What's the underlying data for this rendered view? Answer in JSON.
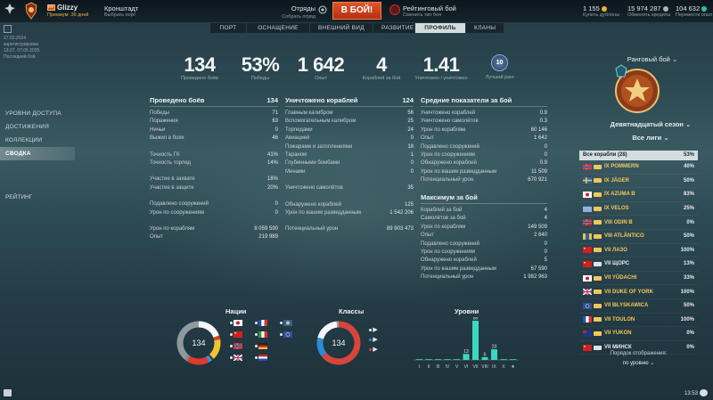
{
  "header": {
    "player_name": "Glizzy",
    "player_flag": "RF",
    "premium": "Премиум: 39 дней",
    "port_name": "Кронштадт",
    "port_sub": "Выбрать порт",
    "divisions_title": "Отряды",
    "divisions_sub": "Собрать отряд",
    "battle_button": "В БОЙ!",
    "mode_name": "Рейтинговый бой",
    "mode_sub": "Сменить тип боя",
    "doubloons": "1 155",
    "doubloons_sub": "Купить дублоны",
    "credits": "15 974 287",
    "credits_sub": "Обменять кредиты",
    "free_xp": "104 632",
    "free_xp_sub": "Перевести опыт",
    "colors": {
      "doubloon": "#f0b429",
      "credit": "#a8b4b8",
      "freexp": "#2fbf9a",
      "battle": "#d8441c"
    }
  },
  "tabs": [
    "ПОРТ",
    "ОСНАЩЕНИЕ",
    "ВНЕШНИЙ ВИД",
    "РАЗВИТИЕ",
    "ПРОФИЛЬ",
    "КЛАНЫ"
  ],
  "dates": {
    "line1": "17.02.2024",
    "line2": "зарегистрирован",
    "line3": "13:27, 07.05.2025",
    "line4": "Последний бой"
  },
  "nav": {
    "items": [
      "УРОВНИ ДОСТУПА",
      "ДОСТИЖЕНИЯ",
      "КОЛЛЕКЦИИ",
      "СВОДКА"
    ],
    "rating": "РЕЙТИНГ"
  },
  "summary": [
    {
      "value": "134",
      "label": "Проведено боёв"
    },
    {
      "value": "53%",
      "label": "Победы"
    },
    {
      "value": "1 642",
      "label": "Опыт"
    },
    {
      "value": "4",
      "label": "Кораблей за бой"
    },
    {
      "value": "1.41",
      "label": "Уничтожен / уничтожен"
    }
  ],
  "best_rank": {
    "value": "10",
    "label": "Лучший ранг"
  },
  "battles": {
    "title": "Проведено боёв",
    "total": "134",
    "group1": [
      [
        "Победы",
        "71"
      ],
      [
        "Поражения",
        "63"
      ],
      [
        "Ничьи",
        "0"
      ],
      [
        "Выжил в боях",
        "46"
      ]
    ],
    "group2": [
      [
        "Точность ГК",
        "41%"
      ],
      [
        "Точность торпед",
        "14%"
      ]
    ],
    "group3": [
      [
        "Участие в захвате",
        "18%"
      ],
      [
        "Участие в защите",
        "20%"
      ]
    ],
    "group4": [
      [
        "Подавлено сооружений",
        "0"
      ],
      [
        "Урон по сооружениям",
        "0"
      ]
    ],
    "group5": [
      [
        "Урон по кораблям",
        "8 059 590"
      ],
      [
        "Опыт",
        "219 989"
      ]
    ]
  },
  "kills": {
    "title": "Уничтожено кораблей",
    "total": "124",
    "group1": [
      [
        "Главным калибром",
        "56"
      ],
      [
        "Вспомогательным калибром",
        "25"
      ],
      [
        "Торпедами",
        "24"
      ],
      [
        "Авиацией",
        "0"
      ],
      [
        "Пожарами и затоплениями",
        "18"
      ],
      [
        "Тараном",
        "1"
      ],
      [
        "Глубинными бомбами",
        "0"
      ],
      [
        "Минами",
        "0"
      ]
    ],
    "group2": [
      [
        "Уничтожено самолётов",
        "35"
      ]
    ],
    "group3": [
      [
        "Обнаружено кораблей",
        "125"
      ],
      [
        "Урон по вашим разведданным",
        "1 542 206"
      ]
    ],
    "group4": [
      [
        "Потенциальный урон",
        "89 903 473"
      ]
    ]
  },
  "averages": {
    "title": "Средние показатели за бой",
    "rows": [
      [
        "Уничтожено кораблей",
        "0.9"
      ],
      [
        "Уничтожено самолётов",
        "0.3"
      ],
      [
        "Урон по кораблям",
        "60 146"
      ],
      [
        "Опыт",
        "1 642"
      ],
      [
        "Подавлено сооружений",
        "0"
      ],
      [
        "Урон по сооружениям",
        "0"
      ],
      [
        "Обнаружено кораблей",
        "0.9"
      ],
      [
        "Урон по вашим разведданным",
        "11 509"
      ],
      [
        "Потенциальный урон",
        "670 921"
      ]
    ]
  },
  "max": {
    "title": "Максимум за бой",
    "rows": [
      [
        "Кораблей за бой",
        "4"
      ],
      [
        "Самолётов за бой",
        "4"
      ],
      [
        "Урон по кораблям",
        "149 509"
      ],
      [
        "Опыт",
        "2 840"
      ],
      [
        "Подавлено сооружений",
        "0"
      ],
      [
        "Урон по сооружениям",
        "0"
      ],
      [
        "Обнаружено кораблей",
        "5"
      ],
      [
        "Урон по вашим разведданным",
        "67 590"
      ],
      [
        "Потенциальный урон",
        "1 982 963"
      ]
    ]
  },
  "charts": {
    "nations_title": "Нации",
    "classes_title": "Классы",
    "levels_title": "Уровни",
    "donut_center": "134"
  },
  "chart_data": [
    {
      "type": "pie",
      "title": "Нации",
      "center_label": "134",
      "slices": [
        {
          "name": "Japan",
          "value": 26,
          "color": "#f4f6f7"
        },
        {
          "name": "USSR",
          "value": 4,
          "color": "#d94020"
        },
        {
          "name": "EU",
          "value": 21,
          "color": "#f2c230"
        },
        {
          "name": "Germany",
          "value": 2,
          "color": "#333b40"
        },
        {
          "name": "Pan-Asia",
          "value": 4,
          "color": "#3a8fd8"
        },
        {
          "name": "UK",
          "value": 22,
          "color": "#e03a2a"
        },
        {
          "name": "France",
          "value": 3,
          "color": "#7f8a90"
        },
        {
          "name": "Other",
          "value": 52,
          "color": "#8f999e"
        }
      ]
    },
    {
      "type": "pie",
      "title": "Классы",
      "center_label": "134",
      "slices": [
        {
          "name": "Destroyer",
          "value": 86,
          "color": "#d8453a"
        },
        {
          "name": "Cruiser",
          "value": 20,
          "color": "#2e8ad6"
        },
        {
          "name": "Battleship",
          "value": 26,
          "color": "#f4f6f7"
        },
        {
          "name": "Submarine",
          "value": 2,
          "color": "#9aa3a8"
        }
      ]
    },
    {
      "type": "bar",
      "title": "Уровни",
      "categories": [
        "I",
        "II",
        "III",
        "IV",
        "V",
        "VI",
        "VII",
        "VIII",
        "IX",
        "X",
        "★"
      ],
      "values": [
        0,
        0,
        0,
        0,
        0,
        13,
        85,
        6,
        23,
        0,
        0
      ],
      "ylim": [
        0,
        85
      ]
    }
  ],
  "nation_legend": [
    {
      "flag": "japan",
      "flag2": "france"
    },
    {
      "flag": "ussr",
      "flag2": "italy"
    },
    {
      "flag": "norway",
      "flag2": "eu"
    },
    {
      "flag": "uk",
      "flag2": "netherlands"
    }
  ],
  "ranked": {
    "title": "Ранговый бой",
    "season": "Девятнадцатый сезон",
    "league": "Все лиги",
    "list_header": "Все корабли (28)",
    "list_header_pct": "53%",
    "ships": [
      {
        "tier": "IX",
        "name": "POMMERN",
        "flag": "norway",
        "pct": "40%",
        "premium": true
      },
      {
        "tier": "IX",
        "name": "JÄGER",
        "flag": "sweden",
        "pct": "50%",
        "premium": true
      },
      {
        "tier": "IX",
        "name": "AZUMA B",
        "flag": "japan",
        "pct": "83%",
        "premium": true
      },
      {
        "tier": "IX",
        "name": "VELOS",
        "flag": "greece",
        "pct": "25%",
        "premium": true
      },
      {
        "tier": "VIII",
        "name": "ODIN B",
        "flag": "norway",
        "pct": "0%",
        "premium": true
      },
      {
        "tier": "VIII",
        "name": "ATLÂNTICO",
        "flag": "pan-america",
        "pct": "50%",
        "premium": true
      },
      {
        "tier": "VII",
        "name": "ЛАЗО",
        "flag": "ussr",
        "pct": "100%",
        "premium": true
      },
      {
        "tier": "VII",
        "name": "ЩОРС",
        "flag": "ussr",
        "pct": "13%",
        "premium": false
      },
      {
        "tier": "VII",
        "name": "YŪDACHI",
        "flag": "japan",
        "pct": "33%",
        "premium": true
      },
      {
        "tier": "VII",
        "name": "DUKE OF YORK",
        "flag": "uk",
        "pct": "100%",
        "premium": true
      },
      {
        "tier": "VII",
        "name": "BŁYSKAWICA",
        "flag": "eu",
        "pct": "50%",
        "premium": true
      },
      {
        "tier": "VII",
        "name": "TOULON",
        "flag": "france",
        "pct": "100%",
        "premium": true
      },
      {
        "tier": "VII",
        "name": "YUKON",
        "flag": "commonwealth",
        "pct": "0%",
        "premium": true
      },
      {
        "tier": "VII",
        "name": "МИНСК",
        "flag": "ussr",
        "pct": "0%",
        "premium": false
      }
    ],
    "sort_label": "Порядок отображения:",
    "sort_value": "по уровню"
  },
  "footer": {
    "clock": "13:53"
  }
}
